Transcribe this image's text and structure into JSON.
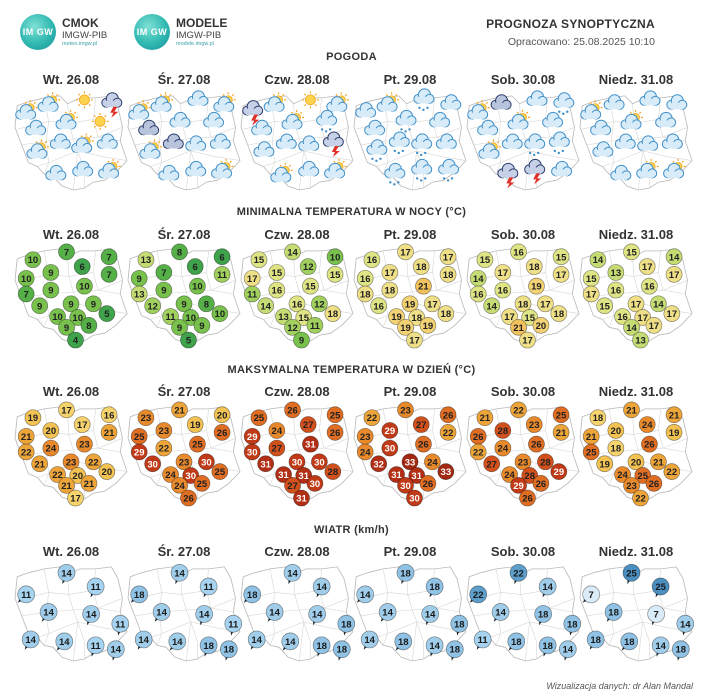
{
  "logos": [
    {
      "title": "CMOK",
      "subtitle": "IMGW-PIB",
      "url": "meteo.imgw.pl",
      "mark": "IM GW"
    },
    {
      "title": "MODELE",
      "subtitle": "IMGW-PIB",
      "url": "modele.imgw.pl",
      "mark": "IM GW"
    }
  ],
  "header": {
    "title": "PROGNOZA SYNOPTYCZNA",
    "issued": "Opracowano: 25.08.2025 10:10"
  },
  "days": [
    "Wt. 26.08",
    "Śr. 27.08",
    "Czw. 28.08",
    "Pt. 29.08",
    "Sob. 30.08",
    "Niedz. 31.08"
  ],
  "sections": {
    "weather": "POGODA",
    "tmin": "MINIMALNA TEMPERATURA W NOCY (°C)",
    "tmax": "MAKSYMALNA TEMPERATURA W DZIEŃ (°C)",
    "wind": "WIATR (km/h)"
  },
  "weather_icons": [
    [
      "partly-cloudy-icon",
      "partly-cloudy-icon",
      "sun-icon",
      "thunderstorm-icon",
      "cloud-icon",
      "partly-cloudy-icon",
      "sun-icon",
      "partly-cloudy-icon",
      "cloud-icon",
      "partly-cloudy-icon",
      "cloud-icon",
      "cloud-icon",
      "cloud-icon",
      "partly-cloudy-icon"
    ],
    [
      "partly-cloudy-icon",
      "partly-cloudy-icon",
      "cloud-icon",
      "partly-cloudy-icon",
      "dark-cloud-icon",
      "cloud-icon",
      "cloud-icon",
      "partly-cloudy-icon",
      "dark-cloud-icon",
      "cloud-icon",
      "cloud-icon",
      "cloud-icon",
      "cloud-icon",
      "partly-cloudy-icon"
    ],
    [
      "thunderstorm-icon",
      "partly-cloudy-icon",
      "sun-icon",
      "partly-cloudy-icon",
      "cloud-icon",
      "partly-cloudy-icon",
      "rain-icon",
      "cloud-icon",
      "cloud-icon",
      "cloud-icon",
      "thunderstorm-icon",
      "partly-cloudy-icon",
      "cloud-icon",
      "partly-cloudy-icon"
    ],
    [
      "cloud-icon",
      "partly-cloudy-icon",
      "rain-icon",
      "cloud-icon",
      "cloud-icon",
      "rain-icon",
      "cloud-icon",
      "rain-icon",
      "rain-icon",
      "rain-icon",
      "cloud-icon",
      "rain-icon",
      "rain-icon",
      "rain-icon"
    ],
    [
      "partly-cloudy-icon",
      "dark-cloud-icon",
      "cloud-icon",
      "rain-icon",
      "cloud-icon",
      "partly-cloudy-icon",
      "cloud-icon",
      "partly-cloudy-icon",
      "cloud-icon",
      "rain-icon",
      "rain-icon",
      "thunderstorm-icon",
      "thunderstorm-icon",
      "cloud-icon"
    ],
    [
      "partly-cloudy-icon",
      "cloud-icon",
      "cloud-icon",
      "cloud-icon",
      "cloud-icon",
      "partly-cloudy-icon",
      "cloud-icon",
      "cloud-icon",
      "cloud-icon",
      "cloud-icon",
      "cloud-icon",
      "cloud-icon",
      "partly-cloudy-icon",
      "partly-cloudy-icon"
    ]
  ],
  "tmin": [
    [
      7,
      10,
      7,
      6,
      7,
      10,
      9,
      7,
      9,
      10,
      9,
      9,
      9,
      10,
      5,
      10,
      8,
      9,
      4
    ],
    [
      8,
      13,
      6,
      6,
      11,
      9,
      7,
      13,
      9,
      10,
      12,
      9,
      8,
      11,
      10,
      10,
      9,
      9,
      5
    ],
    [
      14,
      15,
      10,
      12,
      15,
      17,
      15,
      11,
      16,
      15,
      14,
      16,
      12,
      13,
      18,
      15,
      11,
      12,
      9
    ],
    [
      17,
      16,
      17,
      18,
      18,
      16,
      17,
      18,
      18,
      21,
      16,
      19,
      17,
      19,
      18,
      18,
      19,
      19,
      17
    ],
    [
      16,
      15,
      15,
      18,
      17,
      14,
      17,
      16,
      16,
      19,
      14,
      18,
      17,
      17,
      18,
      15,
      20,
      21,
      17
    ],
    [
      15,
      14,
      14,
      17,
      17,
      15,
      13,
      17,
      16,
      16,
      15,
      17,
      14,
      16,
      17,
      17,
      17,
      14,
      13
    ]
  ],
  "tmax": [
    [
      17,
      19,
      16,
      17,
      21,
      21,
      20,
      22,
      24,
      23,
      21,
      23,
      22,
      22,
      20,
      20,
      21,
      21,
      17
    ],
    [
      21,
      23,
      20,
      19,
      26,
      25,
      23,
      29,
      22,
      25,
      30,
      23,
      30,
      24,
      25,
      30,
      25,
      24,
      26
    ],
    [
      26,
      25,
      25,
      27,
      26,
      29,
      24,
      30,
      27,
      31,
      31,
      30,
      30,
      31,
      28,
      31,
      30,
      27,
      31
    ],
    [
      23,
      22,
      26,
      27,
      22,
      23,
      29,
      24,
      30,
      26,
      32,
      33,
      24,
      31,
      33,
      31,
      26,
      30,
      30
    ],
    [
      22,
      21,
      25,
      23,
      21,
      26,
      28,
      22,
      24,
      26,
      27,
      23,
      28,
      24,
      29,
      28,
      26,
      29,
      26
    ],
    [
      21,
      18,
      21,
      24,
      19,
      21,
      20,
      25,
      18,
      26,
      19,
      20,
      21,
      24,
      22,
      25,
      26,
      23,
      22
    ]
  ],
  "wind": [
    [
      14,
      11,
      11,
      14,
      14,
      11,
      14,
      14,
      11,
      14
    ],
    [
      14,
      18,
      11,
      14,
      14,
      11,
      14,
      14,
      18,
      18
    ],
    [
      14,
      18,
      14,
      14,
      14,
      18,
      14,
      14,
      18,
      18
    ],
    [
      18,
      14,
      18,
      14,
      14,
      18,
      14,
      18,
      14,
      18
    ],
    [
      22,
      22,
      14,
      14,
      18,
      18,
      11,
      18,
      18,
      14
    ],
    [
      25,
      7,
      25,
      18,
      7,
      14,
      18,
      18,
      14,
      18
    ]
  ],
  "footer": "Wizualizacja danych: dr Alan Mandal"
}
